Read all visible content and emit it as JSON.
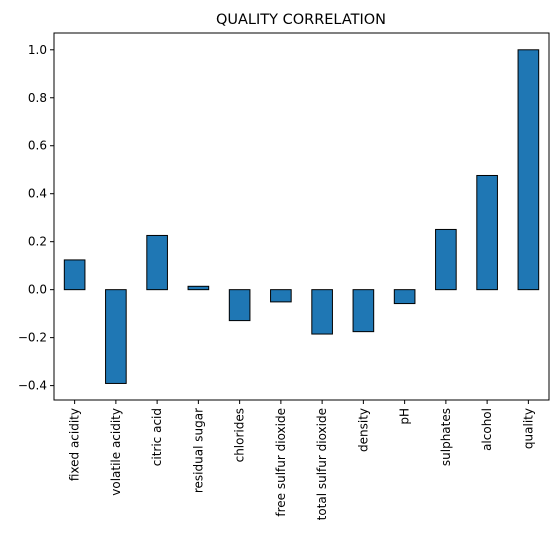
{
  "chart_data": {
    "type": "bar",
    "title": "QUALITY CORRELATION",
    "xlabel": "",
    "ylabel": "",
    "categories": [
      "fixed acidity",
      "volatile acidity",
      "citric acid",
      "residual sugar",
      "chlorides",
      "free sulfur dioxide",
      "total sulfur dioxide",
      "density",
      "pH",
      "sulphates",
      "alcohol",
      "quality"
    ],
    "values": [
      0.124,
      -0.391,
      0.226,
      0.014,
      -0.129,
      -0.051,
      -0.185,
      -0.175,
      -0.058,
      0.251,
      0.476,
      1.0
    ],
    "ylim": [
      -0.46,
      1.07
    ],
    "yticks": [
      -0.4,
      -0.2,
      0.0,
      0.2,
      0.4,
      0.6,
      0.8,
      1.0
    ],
    "ytick_labels": [
      "−0.4",
      "−0.2",
      "0.0",
      "0.2",
      "0.4",
      "0.6",
      "0.8",
      "1.0"
    ],
    "bar_color": "#1f77b4",
    "edge_color": "#000000",
    "grid": false,
    "legend": "none"
  }
}
